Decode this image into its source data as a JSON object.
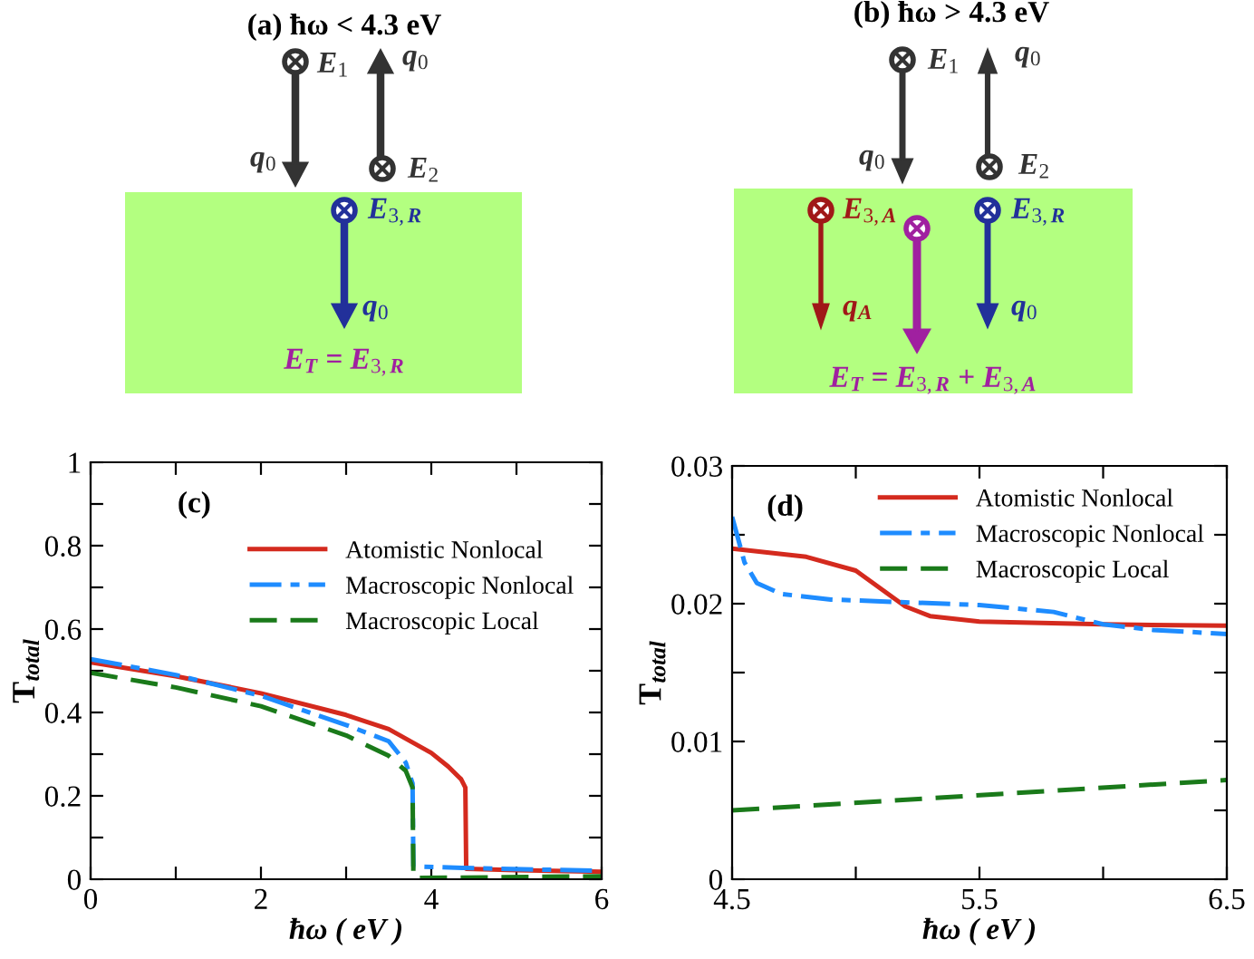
{
  "chart_data": [
    {
      "type": "other",
      "title": "(a) ħω < 4.3 eV",
      "annotations": [
        "E$_{1}$",
        "q$_{0}$",
        "q$_{0}$",
        "E$_{2}$",
        "E$_{3,R}$",
        "q$_{0}$",
        "E$_{T}$ = E$_{3,R}$"
      ]
    },
    {
      "type": "other",
      "title": "(b) ħω > 4.3 eV",
      "annotations": [
        "E$_{1}$",
        "q$_{0}$",
        "q$_{0}$",
        "E$_{2}$",
        "E$_{3,A}$",
        "q$_{A}$",
        "E$_{3,R}$",
        "q$_{0}$",
        "E$_{T}$ = E$_{3,R}$ + E$_{3,A}$"
      ]
    },
    {
      "type": "line",
      "title": "(c)",
      "xlabel": "ħω ( eV )",
      "ylabel": "T$_{total}$",
      "xlim": [
        0,
        6
      ],
      "ylim": [
        0,
        1
      ],
      "xticks": [
        0,
        {
          "value": 1,
          "label": null
        },
        2,
        {
          "value": 3,
          "label": null
        },
        4,
        {
          "value": 5,
          "label": null
        },
        6
      ],
      "yticks": [
        0,
        {
          "value": 0.1,
          "label": null
        },
        0.2,
        {
          "value": 0.3,
          "label": null
        },
        0.4,
        {
          "value": 0.5,
          "label": null
        },
        0.6,
        {
          "value": 0.7,
          "label": null
        },
        0.8,
        {
          "value": 0.9,
          "label": null
        },
        1
      ],
      "legend": "right",
      "grid": false,
      "series": [
        {
          "name": "Atomistic Nonlocal",
          "color": "#d42a1e",
          "line_style": "solid",
          "x": [
            0,
            1,
            2,
            3,
            3.5,
            4,
            4.2,
            4.35,
            4.4,
            4.41,
            5,
            6
          ],
          "values": [
            0.52,
            0.487,
            0.446,
            0.394,
            0.36,
            0.303,
            0.27,
            0.24,
            0.22,
            0.025,
            0.022,
            0.018
          ]
        },
        {
          "name": "Macroscopic Nonlocal",
          "color": "#1e8cff",
          "line_style": "dashdot",
          "x": [
            0,
            1,
            2,
            3,
            3.5,
            3.7,
            3.78,
            3.79,
            4.4,
            6
          ],
          "values": [
            0.528,
            0.49,
            0.44,
            0.37,
            0.331,
            0.28,
            0.23,
            0.031,
            0.027,
            0.02
          ]
        },
        {
          "name": "Macroscopic Local",
          "color": "#1a7a1a",
          "line_style": "dashed",
          "x": [
            0,
            1,
            2,
            3,
            3.5,
            3.7,
            3.78,
            3.79,
            6
          ],
          "values": [
            0.495,
            0.46,
            0.415,
            0.345,
            0.296,
            0.26,
            0.22,
            0.003,
            0.007
          ]
        }
      ]
    },
    {
      "type": "line",
      "title": "(d)",
      "xlabel": "ħω ( eV )",
      "ylabel": "T$_{total}$",
      "xlim": [
        4.5,
        6.5
      ],
      "ylim": [
        0,
        0.03
      ],
      "xticks": [
        4.5,
        {
          "value": 5,
          "label": null
        },
        5.5,
        {
          "value": 6,
          "label": null
        },
        6.5
      ],
      "yticks": [
        0,
        {
          "value": 0.005,
          "label": null
        },
        0.01,
        {
          "value": 0.015,
          "label": null
        },
        0.02,
        {
          "value": 0.025,
          "label": null
        },
        0.03
      ],
      "legend": "top right",
      "grid": false,
      "series": [
        {
          "name": "Atomistic Nonlocal",
          "color": "#d42a1e",
          "line_style": "solid",
          "x": [
            4.5,
            4.8,
            5.0,
            5.1,
            5.2,
            5.3,
            5.5,
            6.0,
            6.5
          ],
          "values": [
            0.024,
            0.0234,
            0.0224,
            0.0211,
            0.0198,
            0.0191,
            0.0187,
            0.0185,
            0.0184
          ]
        },
        {
          "name": "Macroscopic Nonlocal",
          "color": "#1e8cff",
          "line_style": "dashdot",
          "x": [
            4.5,
            4.52,
            4.55,
            4.6,
            4.7,
            4.9,
            5.2,
            5.5,
            5.8,
            6.0,
            6.2,
            6.5
          ],
          "values": [
            0.0263,
            0.025,
            0.023,
            0.0215,
            0.0207,
            0.0203,
            0.0201,
            0.0199,
            0.0194,
            0.0185,
            0.0181,
            0.0178
          ]
        },
        {
          "name": "Macroscopic Local",
          "color": "#1a7a1a",
          "line_style": "dashed",
          "x": [
            4.5,
            6.5
          ],
          "values": [
            0.005,
            0.0072
          ]
        }
      ]
    }
  ]
}
